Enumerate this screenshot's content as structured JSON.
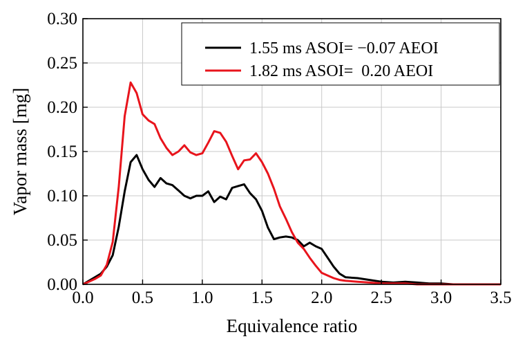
{
  "chart_data": {
    "type": "line",
    "title": "",
    "xlabel": "Equivalence ratio",
    "ylabel": "Vapor mass [mg]",
    "xlim": [
      0.0,
      3.5
    ],
    "ylim": [
      0.0,
      0.3
    ],
    "x_ticks": [
      "0.0",
      "0.5",
      "1.0",
      "1.5",
      "2.0",
      "2.5",
      "3.0",
      "3.5"
    ],
    "y_ticks": [
      "0.00",
      "0.05",
      "0.10",
      "0.15",
      "0.20",
      "0.25",
      "0.30"
    ],
    "grid": true,
    "legend_position": "top-right",
    "series": [
      {
        "name": "1.55 ms ASOI= −0.07 AEOI",
        "color": "#000000",
        "x": [
          0.0,
          0.05,
          0.1,
          0.15,
          0.2,
          0.25,
          0.3,
          0.35,
          0.4,
          0.45,
          0.5,
          0.55,
          0.6,
          0.65,
          0.7,
          0.75,
          0.8,
          0.85,
          0.9,
          0.95,
          1.0,
          1.05,
          1.1,
          1.15,
          1.2,
          1.25,
          1.3,
          1.35,
          1.4,
          1.45,
          1.5,
          1.55,
          1.6,
          1.65,
          1.7,
          1.75,
          1.8,
          1.85,
          1.9,
          1.95,
          2.0,
          2.05,
          2.1,
          2.15,
          2.2,
          2.3,
          2.4,
          2.5,
          2.6,
          2.7,
          2.8,
          2.9,
          3.0,
          3.1,
          3.2,
          3.3,
          3.4,
          3.5
        ],
        "y": [
          0.0,
          0.004,
          0.008,
          0.012,
          0.02,
          0.033,
          0.065,
          0.105,
          0.138,
          0.146,
          0.13,
          0.118,
          0.11,
          0.12,
          0.114,
          0.112,
          0.106,
          0.1,
          0.097,
          0.1,
          0.1,
          0.105,
          0.093,
          0.099,
          0.096,
          0.109,
          0.111,
          0.113,
          0.103,
          0.096,
          0.083,
          0.064,
          0.051,
          0.053,
          0.054,
          0.053,
          0.05,
          0.043,
          0.047,
          0.043,
          0.04,
          0.03,
          0.02,
          0.012,
          0.008,
          0.007,
          0.005,
          0.003,
          0.002,
          0.003,
          0.002,
          0.001,
          0.001,
          0.0,
          0.0,
          0.0,
          0.0,
          0.0
        ]
      },
      {
        "name": "1.82 ms ASOI=  0.20 AEOI",
        "color": "#e8141c",
        "x": [
          0.0,
          0.05,
          0.1,
          0.15,
          0.2,
          0.25,
          0.3,
          0.35,
          0.4,
          0.45,
          0.5,
          0.55,
          0.6,
          0.65,
          0.7,
          0.75,
          0.8,
          0.85,
          0.9,
          0.95,
          1.0,
          1.05,
          1.1,
          1.15,
          1.2,
          1.25,
          1.3,
          1.35,
          1.4,
          1.45,
          1.5,
          1.55,
          1.6,
          1.65,
          1.7,
          1.75,
          1.8,
          1.85,
          1.9,
          1.95,
          2.0,
          2.05,
          2.1,
          2.15,
          2.2,
          2.3,
          2.4,
          2.5,
          2.6,
          2.7,
          2.8,
          2.9,
          3.0,
          3.1,
          3.2,
          3.3,
          3.4,
          3.5
        ],
        "y": [
          0.0,
          0.003,
          0.006,
          0.01,
          0.022,
          0.048,
          0.11,
          0.19,
          0.228,
          0.216,
          0.192,
          0.185,
          0.181,
          0.165,
          0.154,
          0.146,
          0.15,
          0.157,
          0.149,
          0.146,
          0.148,
          0.16,
          0.173,
          0.171,
          0.161,
          0.145,
          0.13,
          0.14,
          0.141,
          0.148,
          0.138,
          0.125,
          0.108,
          0.088,
          0.074,
          0.059,
          0.047,
          0.04,
          0.03,
          0.021,
          0.013,
          0.01,
          0.007,
          0.005,
          0.004,
          0.003,
          0.002,
          0.001,
          0.001,
          0.001,
          0.0,
          0.0,
          0.0,
          0.0,
          0.0,
          0.0,
          0.0,
          0.0
        ]
      }
    ]
  }
}
